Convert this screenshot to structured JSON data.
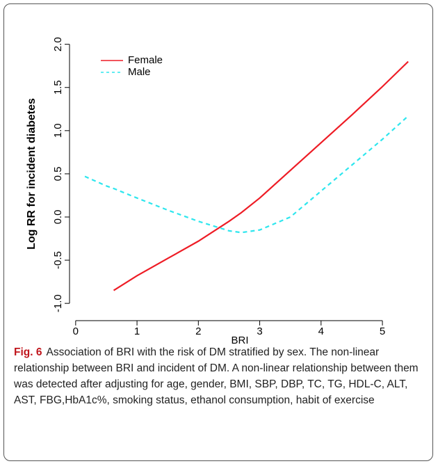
{
  "chart_data": {
    "type": "line",
    "x_label": "BRI",
    "y_label": "Log RR for incident diabetes",
    "x": [
      0.15,
      0.5,
      0.62,
      1,
      1.5,
      2,
      2.5,
      2.7,
      3,
      3.5,
      4,
      4.5,
      5,
      5.42
    ],
    "series": [
      {
        "name": "Female",
        "color": "#ee1c25",
        "dash": false,
        "values": [
          null,
          null,
          -0.85,
          -0.68,
          -0.48,
          -0.28,
          -0.05,
          0.05,
          0.22,
          0.54,
          0.86,
          1.18,
          1.51,
          1.8
        ]
      },
      {
        "name": "Male",
        "color": "#2ee6ee",
        "dash": true,
        "values": [
          0.47,
          0.36,
          0.33,
          0.22,
          0.08,
          -0.05,
          -0.16,
          -0.18,
          -0.15,
          0.0,
          0.3,
          0.6,
          0.9,
          1.17
        ]
      }
    ],
    "xlim": [
      -0.1,
      5.6
    ],
    "xticks": [
      0,
      1,
      2,
      3,
      4,
      5
    ],
    "ylim": [
      -1.2,
      2.4
    ],
    "yticks": [
      {
        "value": -1,
        "label": "-1.0"
      },
      {
        "value": -0.5,
        "label": "-0.5"
      },
      {
        "value": 0,
        "label": "0.0"
      },
      {
        "value": 0.5,
        "label": "0.5"
      },
      {
        "value": 1,
        "label": "1.0"
      },
      {
        "value": 1.5,
        "label": "1.5"
      },
      {
        "value": 2,
        "label": "2.0"
      }
    ],
    "legend": "top-left",
    "grid": false
  },
  "caption_label": "Fig. 6",
  "caption": "Association of BRI with the risk of DM stratified by sex. The non-linear relationship between BRI and incident of DM. A non-linear relationship between them was detected after adjusting for age, gender, BMI, SBP, DBP, TC, TG, HDL-C, ALT, AST, FBG,HbA1c%, smoking status, ethanol consumption, habit of exercise"
}
